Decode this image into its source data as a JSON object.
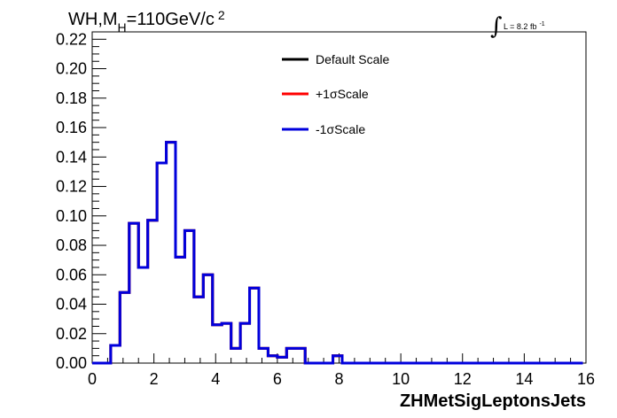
{
  "chart_data": {
    "type": "line",
    "title": {
      "main": "WH,M",
      "sub": "H",
      "rest": "=110GeV/c",
      "sup": "2"
    },
    "luminosity": {
      "integral": "∫",
      "text": "L = 8.2 fb",
      "sup": "-1"
    },
    "xlabel": "ZHMetSigLeptonsJets",
    "ylabel": "",
    "xlim": [
      0,
      16
    ],
    "ylim": [
      0,
      0.225
    ],
    "x_ticks": [
      0,
      2,
      4,
      6,
      8,
      10,
      12,
      14,
      16
    ],
    "x_tick_labels": [
      "0",
      "2",
      "4",
      "6",
      "8",
      "10",
      "12",
      "14",
      "16"
    ],
    "y_ticks": [
      0,
      0.02,
      0.04,
      0.06,
      0.08,
      0.1,
      0.12,
      0.14,
      0.16,
      0.18,
      0.2,
      0.22
    ],
    "y_tick_labels": [
      "0.00",
      "0.02",
      "0.04",
      "0.06",
      "0.08",
      "0.10",
      "0.12",
      "0.14",
      "0.16",
      "0.18",
      "0.20",
      "0.22"
    ],
    "grid": false,
    "legend_position": "top-center",
    "bin_width": 0.3,
    "bin_edges_start": 0.0,
    "series": [
      {
        "name": "Default Scale",
        "color": "#000000",
        "values": [
          0,
          0,
          0.012,
          0.048,
          0.095,
          0.065,
          0.097,
          0.136,
          0.15,
          0.072,
          0.09,
          0.045,
          0.06,
          0.026,
          0.027,
          0.01,
          0.027,
          0.051,
          0.01,
          0.005,
          0.004,
          0.01,
          0.01,
          0,
          0,
          0,
          0.005,
          0,
          0,
          0,
          0,
          0,
          0,
          0,
          0,
          0,
          0,
          0,
          0,
          0,
          0,
          0,
          0,
          0,
          0,
          0,
          0,
          0,
          0,
          0,
          0,
          0,
          0
        ]
      },
      {
        "name": "+1σScale",
        "color": "#ff0000",
        "values": [
          0,
          0,
          0.012,
          0.048,
          0.095,
          0.065,
          0.097,
          0.136,
          0.15,
          0.072,
          0.09,
          0.045,
          0.06,
          0.026,
          0.027,
          0.01,
          0.027,
          0.051,
          0.01,
          0.005,
          0.004,
          0.01,
          0.01,
          0,
          0,
          0,
          0.005,
          0,
          0,
          0,
          0,
          0,
          0,
          0,
          0,
          0,
          0,
          0,
          0,
          0,
          0,
          0,
          0,
          0,
          0,
          0,
          0,
          0,
          0,
          0,
          0,
          0,
          0
        ]
      },
      {
        "name": "-1σScale",
        "color": "#0000dd",
        "values": [
          0,
          0,
          0.012,
          0.048,
          0.095,
          0.065,
          0.097,
          0.136,
          0.15,
          0.072,
          0.09,
          0.045,
          0.06,
          0.026,
          0.027,
          0.01,
          0.027,
          0.051,
          0.01,
          0.005,
          0.004,
          0.01,
          0.01,
          0,
          0,
          0,
          0.005,
          0,
          0,
          0,
          0,
          0,
          0,
          0,
          0,
          0,
          0,
          0,
          0,
          0,
          0,
          0,
          0,
          0,
          0,
          0,
          0,
          0,
          0,
          0,
          0,
          0,
          0
        ]
      }
    ]
  }
}
